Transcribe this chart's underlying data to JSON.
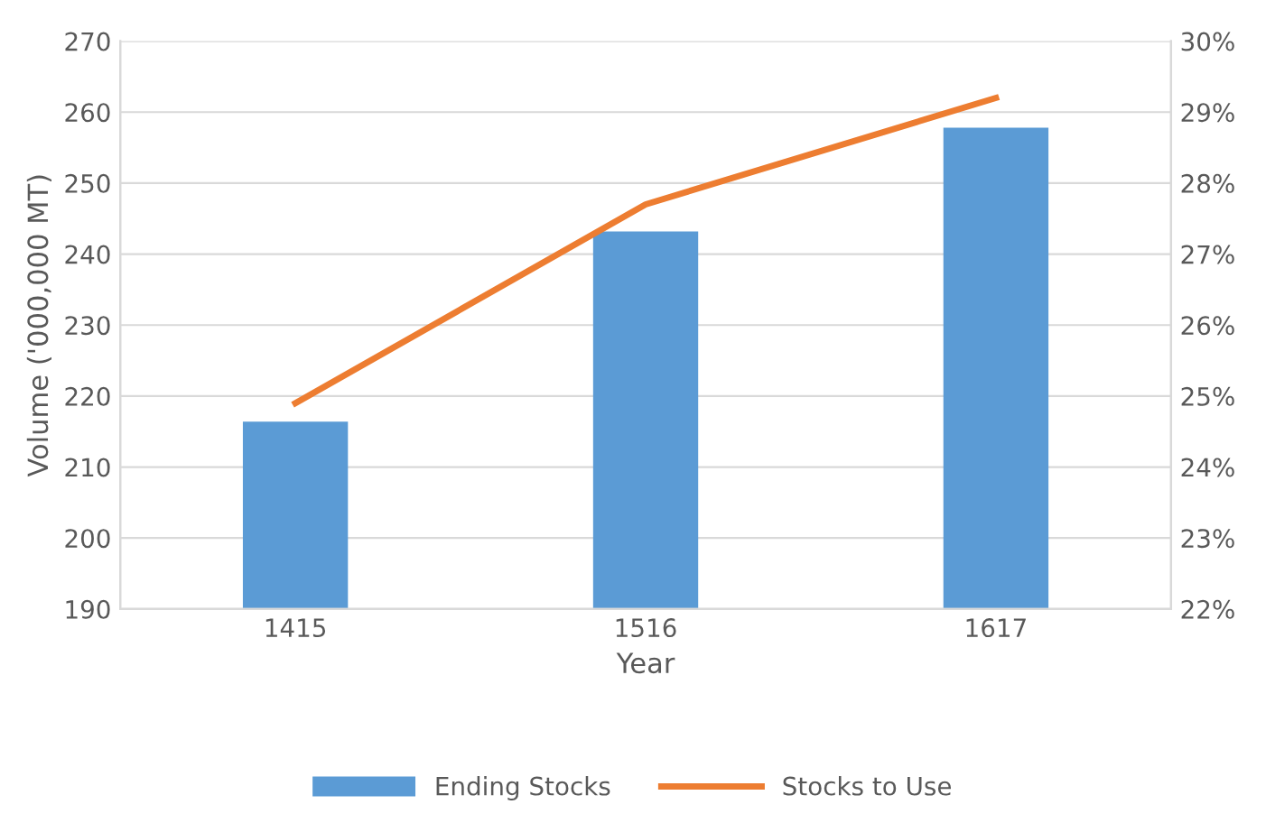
{
  "chart_data": {
    "type": "bar",
    "xlabel": "Year",
    "ylabel": "Volume ('000,000 MT)",
    "categories": [
      "1415",
      "1516",
      "1617"
    ],
    "series": [
      {
        "name": "Ending Stocks",
        "color": "#5b9bd5",
        "values": [
          216.4,
          243.2,
          257.8
        ]
      },
      {
        "name": "Stocks to Use",
        "type": "line",
        "axis": "y2",
        "color": "#ed7d31",
        "values": [
          24.9,
          27.7,
          29.2
        ]
      }
    ],
    "ylim": [
      190,
      270
    ],
    "yticks": [
      190,
      200,
      210,
      220,
      230,
      240,
      250,
      260,
      270
    ],
    "y2lim": [
      22,
      30
    ],
    "y2ticks": [
      {
        "value": 22,
        "label": "22%"
      },
      {
        "value": 23,
        "label": "23%"
      },
      {
        "value": 24,
        "label": "24%"
      },
      {
        "value": 25,
        "label": "25%"
      },
      {
        "value": 26,
        "label": "26%"
      },
      {
        "value": 27,
        "label": "27%"
      },
      {
        "value": 28,
        "label": "28%"
      },
      {
        "value": 29,
        "label": "29%"
      },
      {
        "value": 30,
        "label": "30%"
      }
    ],
    "grid": "y",
    "legend": "bottom",
    "marker": "none",
    "line_style": "solid"
  }
}
